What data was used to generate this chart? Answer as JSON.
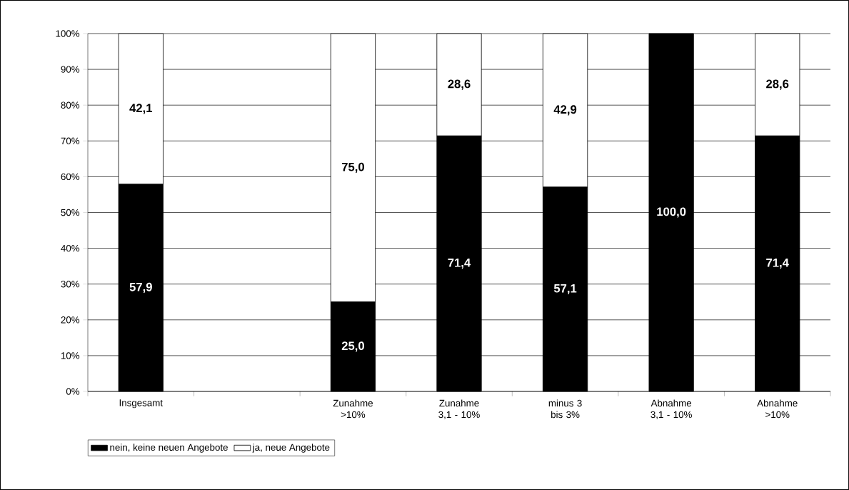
{
  "chart_data": {
    "type": "bar",
    "stacked": true,
    "categories": [
      "Insgesamt",
      null,
      "Zunahme >10%",
      "Zunahme 3,1 - 10%",
      "minus 3 bis 3%",
      "Abnahme 3,1 - 10%",
      "Abnahme >10%"
    ],
    "series": [
      {
        "name": "nein, keine neuen Angebote",
        "color": "#000000",
        "values": [
          57.9,
          null,
          25.0,
          71.4,
          57.1,
          100.0,
          71.4
        ],
        "value_labels": [
          "57,9",
          null,
          "25,0",
          "71,4",
          "57,1",
          "100,0",
          "71,4"
        ]
      },
      {
        "name": "ja, neue Angebote",
        "color": "#ffffff",
        "values": [
          42.1,
          null,
          75.0,
          28.6,
          42.9,
          0.0,
          28.6
        ],
        "value_labels": [
          "42,1",
          null,
          "75,0",
          "28,6",
          "42,9",
          null,
          "28,6"
        ]
      }
    ],
    "ylim": [
      0,
      100
    ],
    "yticks": [
      {
        "value": 0,
        "label": "0%"
      },
      {
        "value": 10,
        "label": "10%"
      },
      {
        "value": 20,
        "label": "20%"
      },
      {
        "value": 30,
        "label": "30%"
      },
      {
        "value": 40,
        "label": "40%"
      },
      {
        "value": 50,
        "label": "50%"
      },
      {
        "value": 60,
        "label": "60%"
      },
      {
        "value": 70,
        "label": "70%"
      },
      {
        "value": 80,
        "label": "80%"
      },
      {
        "value": 90,
        "label": "90%"
      },
      {
        "value": 100,
        "label": "100%"
      }
    ],
    "grid": "y",
    "legend": "bottom"
  }
}
